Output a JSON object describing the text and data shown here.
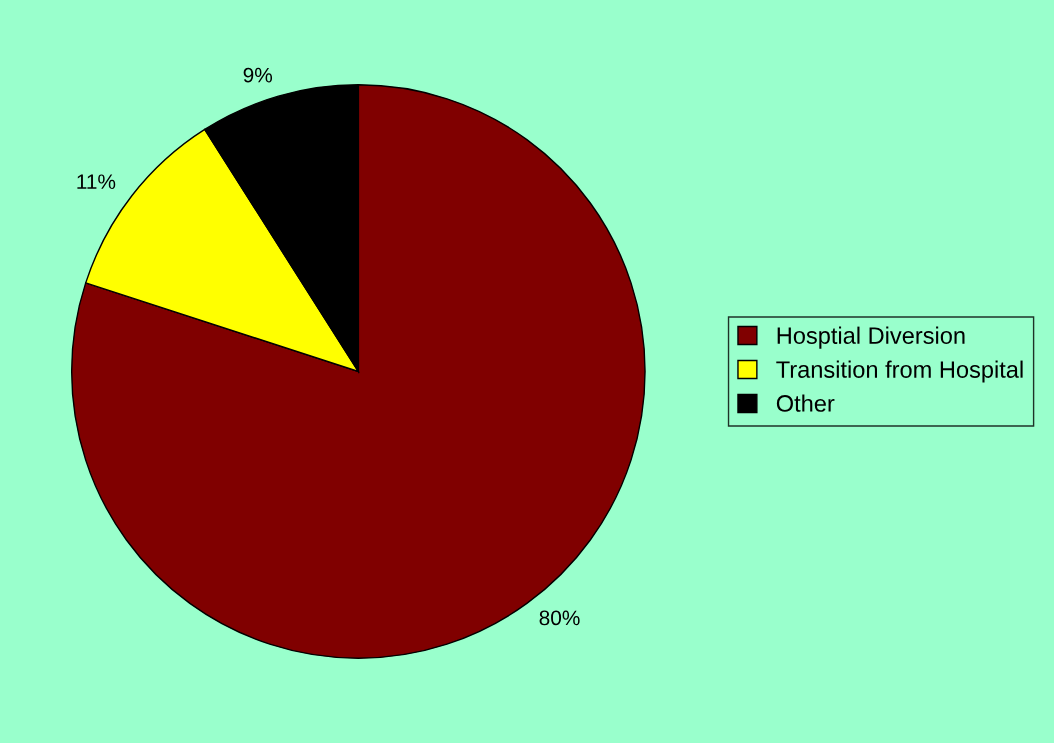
{
  "chart_data": {
    "type": "pie",
    "categories": [
      "Hosptial Diversion",
      "Transition from Hospital",
      "Other"
    ],
    "values": [
      80,
      11,
      9
    ],
    "colors": [
      "#800000",
      "#ffff00",
      "#000000"
    ],
    "value_labels": [
      "80%",
      "11%",
      "9%"
    ],
    "legend": "right"
  }
}
